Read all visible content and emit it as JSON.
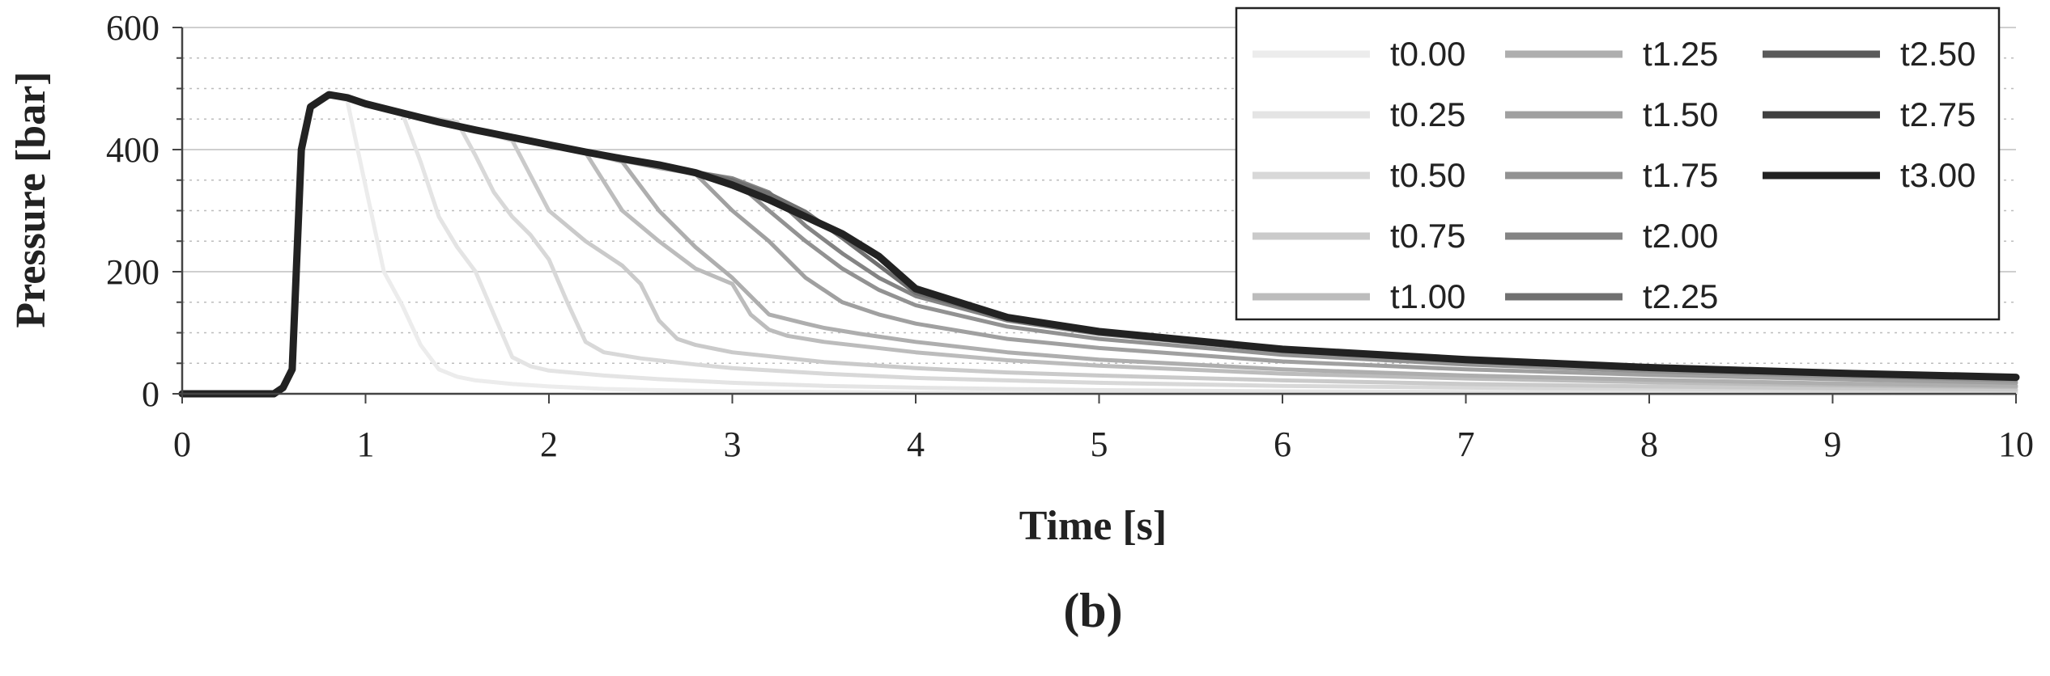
{
  "chart_data": {
    "type": "line",
    "xlabel": "Time [s]",
    "ylabel": "Pressure [bar]",
    "xlim": [
      0,
      10
    ],
    "ylim": [
      0,
      600
    ],
    "xticks": [
      0,
      1,
      2,
      3,
      4,
      5,
      6,
      7,
      8,
      9,
      10
    ],
    "yticks": [
      0,
      200,
      400,
      600
    ],
    "minor_grid_y_step": 50,
    "grid": true,
    "legend_position": "top-right",
    "panel_label": "(b)",
    "series": [
      {
        "name": "t0.00",
        "color": "#ececec",
        "x": [
          0,
          0.5,
          0.55,
          0.6,
          0.65,
          0.7,
          0.8,
          0.9,
          1.0,
          1.1,
          1.2,
          1.3,
          1.4,
          1.5,
          1.6,
          1.8,
          2.0,
          2.3,
          2.6,
          3.0,
          4.0,
          5.0,
          6.0,
          7.0,
          8.0,
          9.0,
          10.0
        ],
        "y": [
          0,
          0,
          10,
          40,
          400,
          470,
          490,
          480,
          340,
          200,
          145,
          80,
          40,
          28,
          22,
          16,
          12,
          8,
          6,
          4,
          2,
          1,
          0,
          0,
          0,
          0,
          0
        ]
      },
      {
        "name": "t0.25",
        "color": "#e4e4e4",
        "x": [
          0,
          0.5,
          0.55,
          0.6,
          0.65,
          0.7,
          0.8,
          0.9,
          1.0,
          1.1,
          1.2,
          1.3,
          1.4,
          1.5,
          1.6,
          1.7,
          1.8,
          1.9,
          2.0,
          2.3,
          2.6,
          3.0,
          3.5,
          4.0,
          5.0,
          6.0,
          7.0,
          8.0,
          9.0,
          10.0
        ],
        "y": [
          0,
          0,
          10,
          40,
          400,
          470,
          490,
          485,
          475,
          468,
          460,
          380,
          290,
          240,
          200,
          130,
          60,
          45,
          38,
          30,
          24,
          18,
          13,
          10,
          6,
          4,
          3,
          2,
          2,
          1
        ]
      },
      {
        "name": "t0.50",
        "color": "#d8d8d8",
        "x": [
          0,
          0.5,
          0.55,
          0.6,
          0.65,
          0.7,
          0.8,
          0.9,
          1.0,
          1.2,
          1.4,
          1.5,
          1.6,
          1.7,
          1.8,
          1.9,
          2.0,
          2.1,
          2.2,
          2.3,
          2.5,
          2.8,
          3.0,
          3.5,
          4.0,
          5.0,
          6.0,
          7.0,
          8.0,
          9.0,
          10.0
        ],
        "y": [
          0,
          0,
          10,
          40,
          400,
          470,
          490,
          485,
          475,
          460,
          450,
          445,
          390,
          330,
          290,
          260,
          220,
          150,
          85,
          68,
          58,
          48,
          42,
          33,
          26,
          18,
          13,
          10,
          8,
          6,
          4
        ]
      },
      {
        "name": "t0.75",
        "color": "#cacaca",
        "x": [
          0,
          0.5,
          0.55,
          0.6,
          0.65,
          0.7,
          0.8,
          0.9,
          1.0,
          1.2,
          1.4,
          1.6,
          1.8,
          2.0,
          2.2,
          2.4,
          2.5,
          2.6,
          2.7,
          2.8,
          3.0,
          3.5,
          4.0,
          4.5,
          5.0,
          6.0,
          7.0,
          8.0,
          9.0,
          10.0
        ],
        "y": [
          0,
          0,
          10,
          40,
          400,
          470,
          490,
          485,
          475,
          460,
          445,
          432,
          415,
          300,
          250,
          210,
          180,
          120,
          90,
          80,
          68,
          52,
          42,
          35,
          30,
          22,
          16,
          12,
          9,
          7
        ]
      },
      {
        "name": "t1.00",
        "color": "#bcbcbc",
        "x": [
          0,
          0.5,
          0.55,
          0.6,
          0.65,
          0.7,
          0.8,
          0.9,
          1.0,
          1.2,
          1.4,
          1.6,
          1.8,
          2.0,
          2.2,
          2.4,
          2.6,
          2.8,
          3.0,
          3.1,
          3.2,
          3.3,
          3.5,
          4.0,
          4.5,
          5.0,
          6.0,
          7.0,
          8.0,
          9.0,
          10.0
        ],
        "y": [
          0,
          0,
          10,
          40,
          400,
          470,
          490,
          485,
          475,
          460,
          445,
          432,
          420,
          408,
          395,
          300,
          250,
          205,
          180,
          130,
          105,
          95,
          85,
          68,
          55,
          46,
          33,
          25,
          19,
          14,
          11
        ]
      },
      {
        "name": "t1.25",
        "color": "#aeaeae",
        "x": [
          0,
          0.5,
          0.55,
          0.6,
          0.65,
          0.7,
          0.8,
          0.9,
          1.0,
          1.2,
          1.4,
          1.6,
          1.8,
          2.0,
          2.2,
          2.4,
          2.6,
          2.8,
          3.0,
          3.2,
          3.4,
          3.5,
          3.7,
          4.0,
          4.5,
          5.0,
          6.0,
          7.0,
          8.0,
          9.0,
          10.0
        ],
        "y": [
          0,
          0,
          10,
          40,
          400,
          470,
          490,
          485,
          475,
          460,
          445,
          432,
          420,
          408,
          395,
          380,
          300,
          240,
          190,
          130,
          115,
          108,
          98,
          85,
          68,
          56,
          40,
          30,
          23,
          17,
          13
        ]
      },
      {
        "name": "t1.50",
        "color": "#a0a0a0",
        "x": [
          0,
          0.5,
          0.55,
          0.6,
          0.65,
          0.7,
          0.8,
          0.9,
          1.0,
          1.2,
          1.4,
          1.6,
          1.8,
          2.0,
          2.2,
          2.4,
          2.6,
          2.8,
          3.0,
          3.2,
          3.4,
          3.6,
          3.8,
          4.0,
          4.5,
          5.0,
          6.0,
          7.0,
          8.0,
          9.0,
          10.0
        ],
        "y": [
          0,
          0,
          10,
          40,
          400,
          470,
          490,
          485,
          475,
          460,
          445,
          432,
          420,
          408,
          395,
          382,
          370,
          360,
          300,
          250,
          190,
          150,
          130,
          115,
          90,
          75,
          53,
          40,
          31,
          24,
          18
        ]
      },
      {
        "name": "t1.75",
        "color": "#929292",
        "x": [
          0,
          0.5,
          0.55,
          0.6,
          0.65,
          0.7,
          0.8,
          0.9,
          1.0,
          1.2,
          1.4,
          1.6,
          1.8,
          2.0,
          2.2,
          2.4,
          2.6,
          2.8,
          3.0,
          3.2,
          3.4,
          3.6,
          3.8,
          4.0,
          4.5,
          5.0,
          6.0,
          7.0,
          8.0,
          9.0,
          10.0
        ],
        "y": [
          0,
          0,
          10,
          40,
          400,
          470,
          490,
          485,
          475,
          460,
          445,
          432,
          420,
          408,
          395,
          382,
          372,
          362,
          352,
          300,
          250,
          205,
          170,
          145,
          110,
          90,
          64,
          48,
          37,
          29,
          22
        ]
      },
      {
        "name": "t2.00",
        "color": "#848484",
        "x": [
          0,
          0.5,
          0.55,
          0.6,
          0.65,
          0.7,
          0.8,
          0.9,
          1.0,
          1.2,
          1.4,
          1.6,
          1.8,
          2.0,
          2.2,
          2.4,
          2.6,
          2.8,
          3.0,
          3.2,
          3.4,
          3.6,
          3.8,
          4.0,
          4.5,
          5.0,
          6.0,
          7.0,
          8.0,
          9.0,
          10.0
        ],
        "y": [
          0,
          0,
          10,
          40,
          400,
          470,
          490,
          485,
          475,
          460,
          445,
          432,
          420,
          408,
          395,
          383,
          373,
          363,
          353,
          330,
          275,
          230,
          190,
          160,
          120,
          98,
          70,
          53,
          41,
          32,
          25
        ]
      },
      {
        "name": "t2.25",
        "color": "#707070",
        "x": [
          0,
          0.5,
          0.55,
          0.6,
          0.65,
          0.7,
          0.8,
          0.9,
          1.0,
          1.2,
          1.4,
          1.6,
          1.8,
          2.0,
          2.2,
          2.4,
          2.6,
          2.8,
          3.0,
          3.2,
          3.4,
          3.6,
          3.8,
          4.0,
          4.5,
          5.0,
          6.0,
          7.0,
          8.0,
          9.0,
          10.0
        ],
        "y": [
          0,
          0,
          10,
          40,
          400,
          470,
          490,
          485,
          475,
          460,
          445,
          432,
          420,
          408,
          395,
          383,
          373,
          363,
          350,
          328,
          298,
          255,
          210,
          165,
          123,
          100,
          72,
          55,
          42,
          33,
          26
        ]
      },
      {
        "name": "t2.50",
        "color": "#5a5a5a",
        "x": [
          0,
          0.5,
          0.55,
          0.6,
          0.65,
          0.7,
          0.8,
          0.9,
          1.0,
          1.2,
          1.4,
          1.6,
          1.8,
          2.0,
          2.2,
          2.4,
          2.6,
          2.8,
          3.0,
          3.2,
          3.4,
          3.6,
          3.8,
          4.0,
          4.5,
          5.0,
          6.0,
          7.0,
          8.0,
          9.0,
          10.0
        ],
        "y": [
          0,
          0,
          10,
          40,
          400,
          470,
          490,
          485,
          475,
          460,
          445,
          432,
          420,
          408,
          395,
          383,
          373,
          362,
          342,
          320,
          292,
          262,
          222,
          172,
          125,
          102,
          73,
          56,
          43,
          34,
          27
        ]
      },
      {
        "name": "t2.75",
        "color": "#404040",
        "x": [
          0,
          0.5,
          0.55,
          0.6,
          0.65,
          0.7,
          0.8,
          0.9,
          1.0,
          1.2,
          1.4,
          1.6,
          1.8,
          2.0,
          2.2,
          2.4,
          2.6,
          2.8,
          3.0,
          3.2,
          3.4,
          3.6,
          3.8,
          4.0,
          4.5,
          5.0,
          6.0,
          7.0,
          8.0,
          9.0,
          10.0
        ],
        "y": [
          0,
          0,
          10,
          40,
          400,
          470,
          490,
          485,
          475,
          460,
          445,
          432,
          420,
          408,
          396,
          385,
          375,
          362,
          342,
          318,
          290,
          262,
          225,
          172,
          125,
          102,
          73,
          56,
          43,
          34,
          27
        ]
      },
      {
        "name": "t3.00",
        "color": "#222222",
        "x": [
          0,
          0.5,
          0.55,
          0.6,
          0.65,
          0.7,
          0.8,
          0.9,
          1.0,
          1.2,
          1.4,
          1.6,
          1.8,
          2.0,
          2.2,
          2.4,
          2.6,
          2.8,
          3.0,
          3.2,
          3.4,
          3.6,
          3.8,
          4.0,
          4.5,
          5.0,
          6.0,
          7.0,
          8.0,
          9.0,
          10.0
        ],
        "y": [
          0,
          0,
          10,
          40,
          400,
          470,
          490,
          485,
          475,
          460,
          445,
          432,
          420,
          408,
          396,
          385,
          375,
          362,
          342,
          318,
          290,
          262,
          225,
          172,
          125,
          102,
          73,
          56,
          43,
          34,
          27
        ]
      }
    ]
  }
}
